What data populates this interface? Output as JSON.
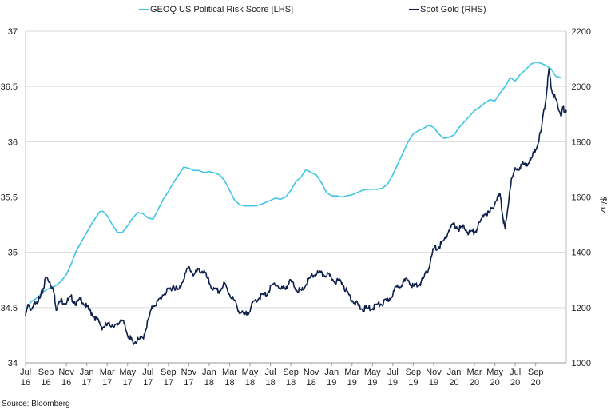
{
  "chart_data": {
    "type": "line",
    "title": "",
    "xlabel": "",
    "ylabel_left": "",
    "ylabel_right": "$/oz.",
    "ylim_left": [
      34,
      37
    ],
    "yticks_left": [
      "34",
      "34.5",
      "35",
      "35.5",
      "36",
      "36.5",
      "37"
    ],
    "ylim_right": [
      1000,
      2200
    ],
    "yticks_right": [
      "1000",
      "1200",
      "1400",
      "1600",
      "1800",
      "2000",
      "2200"
    ],
    "x_ticks": [
      {
        "month": "Jul",
        "year": "16"
      },
      {
        "month": "Sep",
        "year": "16"
      },
      {
        "month": "Nov",
        "year": "16"
      },
      {
        "month": "Jan",
        "year": "17"
      },
      {
        "month": "Mar",
        "year": "17"
      },
      {
        "month": "May",
        "year": "17"
      },
      {
        "month": "Jul",
        "year": "17"
      },
      {
        "month": "Sep",
        "year": "17"
      },
      {
        "month": "Nov",
        "year": "17"
      },
      {
        "month": "Jan",
        "year": "18"
      },
      {
        "month": "Mar",
        "year": "18"
      },
      {
        "month": "May",
        "year": "18"
      },
      {
        "month": "Jul",
        "year": "18"
      },
      {
        "month": "Sep",
        "year": "18"
      },
      {
        "month": "Nov",
        "year": "18"
      },
      {
        "month": "Jan",
        "year": "19"
      },
      {
        "month": "Mar",
        "year": "19"
      },
      {
        "month": "May",
        "year": "19"
      },
      {
        "month": "Jul",
        "year": "19"
      },
      {
        "month": "Sep",
        "year": "19"
      },
      {
        "month": "Nov",
        "year": "19"
      },
      {
        "month": "Jan",
        "year": "20"
      },
      {
        "month": "Mar",
        "year": "20"
      },
      {
        "month": "May",
        "year": "20"
      },
      {
        "month": "Jul",
        "year": "20"
      },
      {
        "month": "Sep",
        "year": "20"
      }
    ],
    "x_range_months": [
      0,
      51
    ],
    "grid": true,
    "legend_position": "top",
    "series": [
      {
        "name": "GEOQ US Political Risk Score [LHS]",
        "axis": "left",
        "color": "#3fc5e6",
        "points": [
          [
            0,
            34.47
          ],
          [
            0.5,
            34.55
          ],
          [
            1,
            34.58
          ],
          [
            1.5,
            34.62
          ],
          [
            2,
            34.66
          ],
          [
            2.5,
            34.68
          ],
          [
            3,
            34.7
          ],
          [
            3.5,
            34.74
          ],
          [
            4,
            34.8
          ],
          [
            4.5,
            34.9
          ],
          [
            5,
            35.02
          ],
          [
            5.5,
            35.1
          ],
          [
            6,
            35.18
          ],
          [
            6.5,
            35.26
          ],
          [
            7,
            35.33
          ],
          [
            7.3,
            35.37
          ],
          [
            7.6,
            35.37
          ],
          [
            8,
            35.33
          ],
          [
            8.5,
            35.25
          ],
          [
            9,
            35.18
          ],
          [
            9.5,
            35.18
          ],
          [
            10,
            35.24
          ],
          [
            10.5,
            35.31
          ],
          [
            11,
            35.36
          ],
          [
            11.5,
            35.35
          ],
          [
            12,
            35.31
          ],
          [
            12.5,
            35.3
          ],
          [
            13,
            35.39
          ],
          [
            13.5,
            35.48
          ],
          [
            14,
            35.55
          ],
          [
            14.5,
            35.63
          ],
          [
            15,
            35.7
          ],
          [
            15.5,
            35.77
          ],
          [
            16,
            35.76
          ],
          [
            16.5,
            35.74
          ],
          [
            17,
            35.74
          ],
          [
            17.5,
            35.72
          ],
          [
            18,
            35.73
          ],
          [
            18.5,
            35.72
          ],
          [
            19,
            35.7
          ],
          [
            19.5,
            35.65
          ],
          [
            20,
            35.56
          ],
          [
            20.5,
            35.47
          ],
          [
            21,
            35.43
          ],
          [
            21.5,
            35.42
          ],
          [
            22,
            35.42
          ],
          [
            22.5,
            35.42
          ],
          [
            23,
            35.43
          ],
          [
            23.5,
            35.45
          ],
          [
            24,
            35.47
          ],
          [
            24.5,
            35.49
          ],
          [
            25,
            35.48
          ],
          [
            25.5,
            35.5
          ],
          [
            26,
            35.56
          ],
          [
            26.5,
            35.64
          ],
          [
            27,
            35.68
          ],
          [
            27.5,
            35.75
          ],
          [
            28,
            35.72
          ],
          [
            28.5,
            35.7
          ],
          [
            29,
            35.63
          ],
          [
            29.5,
            35.54
          ],
          [
            30,
            35.51
          ],
          [
            30.5,
            35.51
          ],
          [
            31,
            35.5
          ],
          [
            31.5,
            35.51
          ],
          [
            32,
            35.52
          ],
          [
            32.5,
            35.54
          ],
          [
            33,
            35.56
          ],
          [
            33.5,
            35.57
          ],
          [
            34,
            35.57
          ],
          [
            34.5,
            35.57
          ],
          [
            35,
            35.58
          ],
          [
            35.5,
            35.62
          ],
          [
            36,
            35.7
          ],
          [
            36.5,
            35.8
          ],
          [
            37,
            35.9
          ],
          [
            37.5,
            36.0
          ],
          [
            38,
            36.07
          ],
          [
            38.5,
            36.1
          ],
          [
            39,
            36.12
          ],
          [
            39.5,
            36.15
          ],
          [
            40,
            36.13
          ],
          [
            40.5,
            36.07
          ],
          [
            41,
            36.03
          ],
          [
            41.5,
            36.04
          ],
          [
            42,
            36.06
          ],
          [
            42.5,
            36.13
          ],
          [
            43,
            36.18
          ],
          [
            43.5,
            36.23
          ],
          [
            44,
            36.28
          ],
          [
            44.5,
            36.31
          ],
          [
            45,
            36.35
          ],
          [
            45.5,
            36.38
          ],
          [
            46,
            36.37
          ],
          [
            46.5,
            36.44
          ],
          [
            47,
            36.5
          ],
          [
            47.5,
            36.58
          ],
          [
            48,
            36.55
          ],
          [
            48.5,
            36.61
          ],
          [
            49,
            36.65
          ],
          [
            49.5,
            36.7
          ],
          [
            50,
            36.72
          ],
          [
            50.5,
            36.71
          ],
          [
            51,
            36.69
          ],
          [
            51.5,
            36.66
          ],
          [
            52,
            36.59
          ],
          [
            52.5,
            36.58
          ]
        ]
      },
      {
        "name": "Spot Gold (RHS)",
        "axis": "right",
        "color": "#0d1f4a",
        "points": [
          [
            0,
            1170
          ],
          [
            0.3,
            1215
          ],
          [
            0.6,
            1185
          ],
          [
            1,
            1225
          ],
          [
            1.4,
            1230
          ],
          [
            1.7,
            1265
          ],
          [
            2,
            1310
          ],
          [
            2.4,
            1295
          ],
          [
            2.8,
            1250
          ],
          [
            3,
            1200
          ],
          [
            3.5,
            1225
          ],
          [
            4,
            1220
          ],
          [
            4.5,
            1235
          ],
          [
            5,
            1215
          ],
          [
            5.5,
            1230
          ],
          [
            6,
            1200
          ],
          [
            6.5,
            1180
          ],
          [
            7,
            1155
          ],
          [
            7.5,
            1130
          ],
          [
            8,
            1135
          ],
          [
            8.5,
            1140
          ],
          [
            9,
            1130
          ],
          [
            9.4,
            1165
          ],
          [
            9.8,
            1120
          ],
          [
            10.2,
            1090
          ],
          [
            10.5,
            1075
          ],
          [
            11,
            1080
          ],
          [
            11.5,
            1090
          ],
          [
            12,
            1150
          ],
          [
            12.5,
            1210
          ],
          [
            13,
            1220
          ],
          [
            13.5,
            1250
          ],
          [
            14,
            1260
          ],
          [
            14.5,
            1280
          ],
          [
            15,
            1260
          ],
          [
            15.5,
            1310
          ],
          [
            16,
            1345
          ],
          [
            16.5,
            1320
          ],
          [
            17,
            1335
          ],
          [
            17.5,
            1330
          ],
          [
            18,
            1290
          ],
          [
            18.5,
            1260
          ],
          [
            19,
            1260
          ],
          [
            19.5,
            1285
          ],
          [
            20,
            1250
          ],
          [
            20.5,
            1220
          ],
          [
            21,
            1185
          ],
          [
            21.5,
            1170
          ],
          [
            22,
            1195
          ],
          [
            22.5,
            1225
          ],
          [
            23,
            1240
          ],
          [
            23.5,
            1245
          ],
          [
            24,
            1270
          ],
          [
            24.5,
            1290
          ],
          [
            25,
            1265
          ],
          [
            25.5,
            1275
          ],
          [
            26,
            1295
          ],
          [
            26.5,
            1270
          ],
          [
            27,
            1255
          ],
          [
            27.5,
            1285
          ],
          [
            28,
            1310
          ],
          [
            28.5,
            1325
          ],
          [
            29,
            1320
          ],
          [
            29.5,
            1320
          ],
          [
            30,
            1305
          ],
          [
            30.5,
            1295
          ],
          [
            31,
            1295
          ],
          [
            31.5,
            1255
          ],
          [
            32,
            1230
          ],
          [
            32.5,
            1210
          ],
          [
            33,
            1195
          ],
          [
            33.5,
            1195
          ],
          [
            34,
            1200
          ],
          [
            34.5,
            1210
          ],
          [
            35,
            1215
          ],
          [
            35.5,
            1225
          ],
          [
            36,
            1250
          ],
          [
            36.5,
            1280
          ],
          [
            37,
            1290
          ],
          [
            37.5,
            1300
          ],
          [
            38,
            1275
          ],
          [
            38.5,
            1285
          ],
          [
            39,
            1300
          ],
          [
            39.5,
            1345
          ],
          [
            40,
            1410
          ],
          [
            40.5,
            1420
          ],
          [
            41,
            1440
          ],
          [
            41.5,
            1480
          ],
          [
            42,
            1500
          ],
          [
            42.5,
            1485
          ],
          [
            43,
            1490
          ],
          [
            43.5,
            1470
          ],
          [
            44,
            1475
          ],
          [
            44.5,
            1500
          ],
          [
            45,
            1545
          ],
          [
            45.5,
            1540
          ],
          [
            46,
            1580
          ],
          [
            46.5,
            1610
          ],
          [
            46.8,
            1530
          ],
          [
            47,
            1480
          ],
          [
            47.5,
            1640
          ],
          [
            48,
            1700
          ],
          [
            48.5,
            1710
          ],
          [
            49,
            1720
          ],
          [
            49.5,
            1730
          ],
          [
            50,
            1775
          ],
          [
            50.5,
            1830
          ],
          [
            51,
            1960
          ],
          [
            51.3,
            2060
          ],
          [
            51.6,
            1985
          ],
          [
            52,
            1950
          ],
          [
            52.5,
            1900
          ],
          [
            52.7,
            1920
          ],
          [
            53,
            1915
          ]
        ]
      }
    ]
  },
  "legend": {
    "items": [
      {
        "label": "GEOQ US Political Risk Score [LHS]",
        "color": "#3fc5e6"
      },
      {
        "label": "Spot Gold (RHS)",
        "color": "#0d1f4a"
      }
    ]
  },
  "footer": {
    "source": "Source: Bloomberg"
  }
}
